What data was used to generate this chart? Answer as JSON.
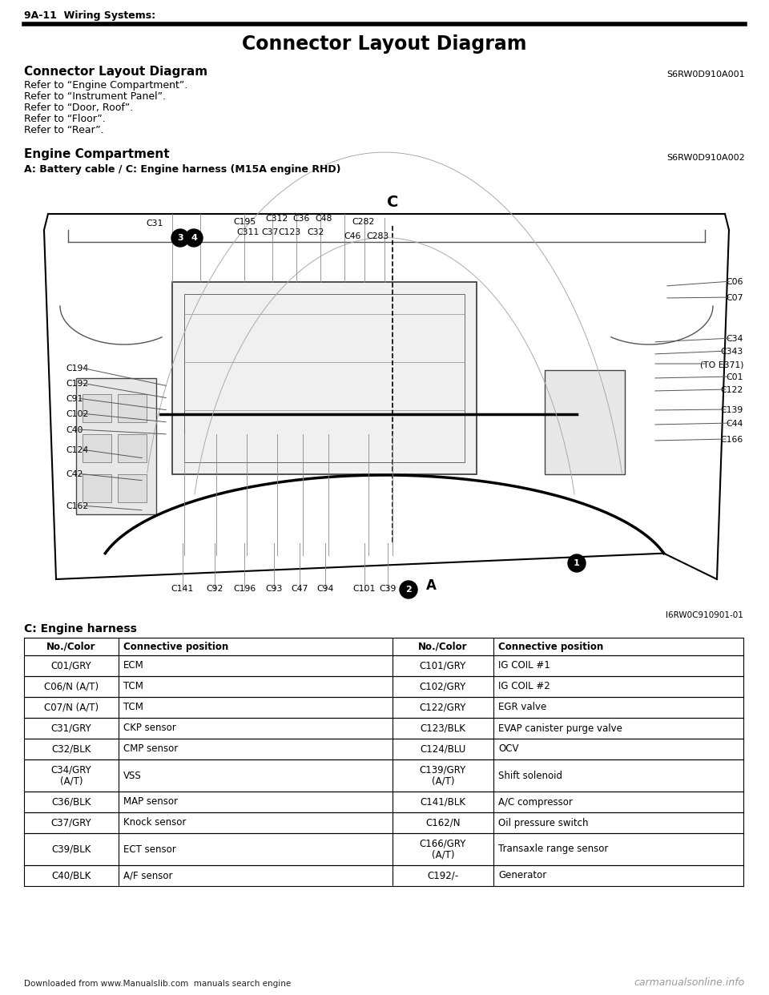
{
  "page_header": "9A-11  Wiring Systems:",
  "page_title": "Connector Layout Diagram",
  "section1_title": "Connector Layout Diagram",
  "section1_code": "S6RW0D910A001",
  "section1_refs": [
    "Refer to “Engine Compartment”.",
    "Refer to “Instrument Panel”.",
    "Refer to “Door, Roof”.",
    "Refer to “Floor”.",
    "Refer to “Rear”."
  ],
  "section2_title": "Engine Compartment",
  "section2_code": "S6RW0D910A002",
  "section2_sub": "A: Battery cable / C: Engine harness (M15A engine RHD)",
  "diagram_ref": "I6RW0C910901-01",
  "harness_title": "C: Engine harness",
  "table_headers": [
    "No./Color",
    "Connective position",
    "No./Color",
    "Connective position"
  ],
  "table_rows": [
    [
      "C01/GRY",
      "ECM",
      "C101/GRY",
      "IG COIL #1"
    ],
    [
      "C06/N (A/T)",
      "TCM",
      "C102/GRY",
      "IG COIL #2"
    ],
    [
      "C07/N (A/T)",
      "TCM",
      "C122/GRY",
      "EGR valve"
    ],
    [
      "C31/GRY",
      "CKP sensor",
      "C123/BLK",
      "EVAP canister purge valve"
    ],
    [
      "C32/BLK",
      "CMP sensor",
      "C124/BLU",
      "OCV"
    ],
    [
      "C34/GRY\n(A/T)",
      "VSS",
      "C139/GRY\n(A/T)",
      "Shift solenoid"
    ],
    [
      "C36/BLK",
      "MAP sensor",
      "C141/BLK",
      "A/C compressor"
    ],
    [
      "C37/GRY",
      "Knock sensor",
      "C162/N",
      "Oil pressure switch"
    ],
    [
      "C39/BLK",
      "ECT sensor",
      "C166/GRY\n(A/T)",
      "Transaxle range sensor"
    ],
    [
      "C40/BLK",
      "A/F sensor",
      "C192/-",
      "Generator"
    ]
  ],
  "footer_left": "Downloaded from www.Manualslib.com  manuals search engine",
  "footer_right": "carmanualsonline.info",
  "bg_color": "#ffffff"
}
